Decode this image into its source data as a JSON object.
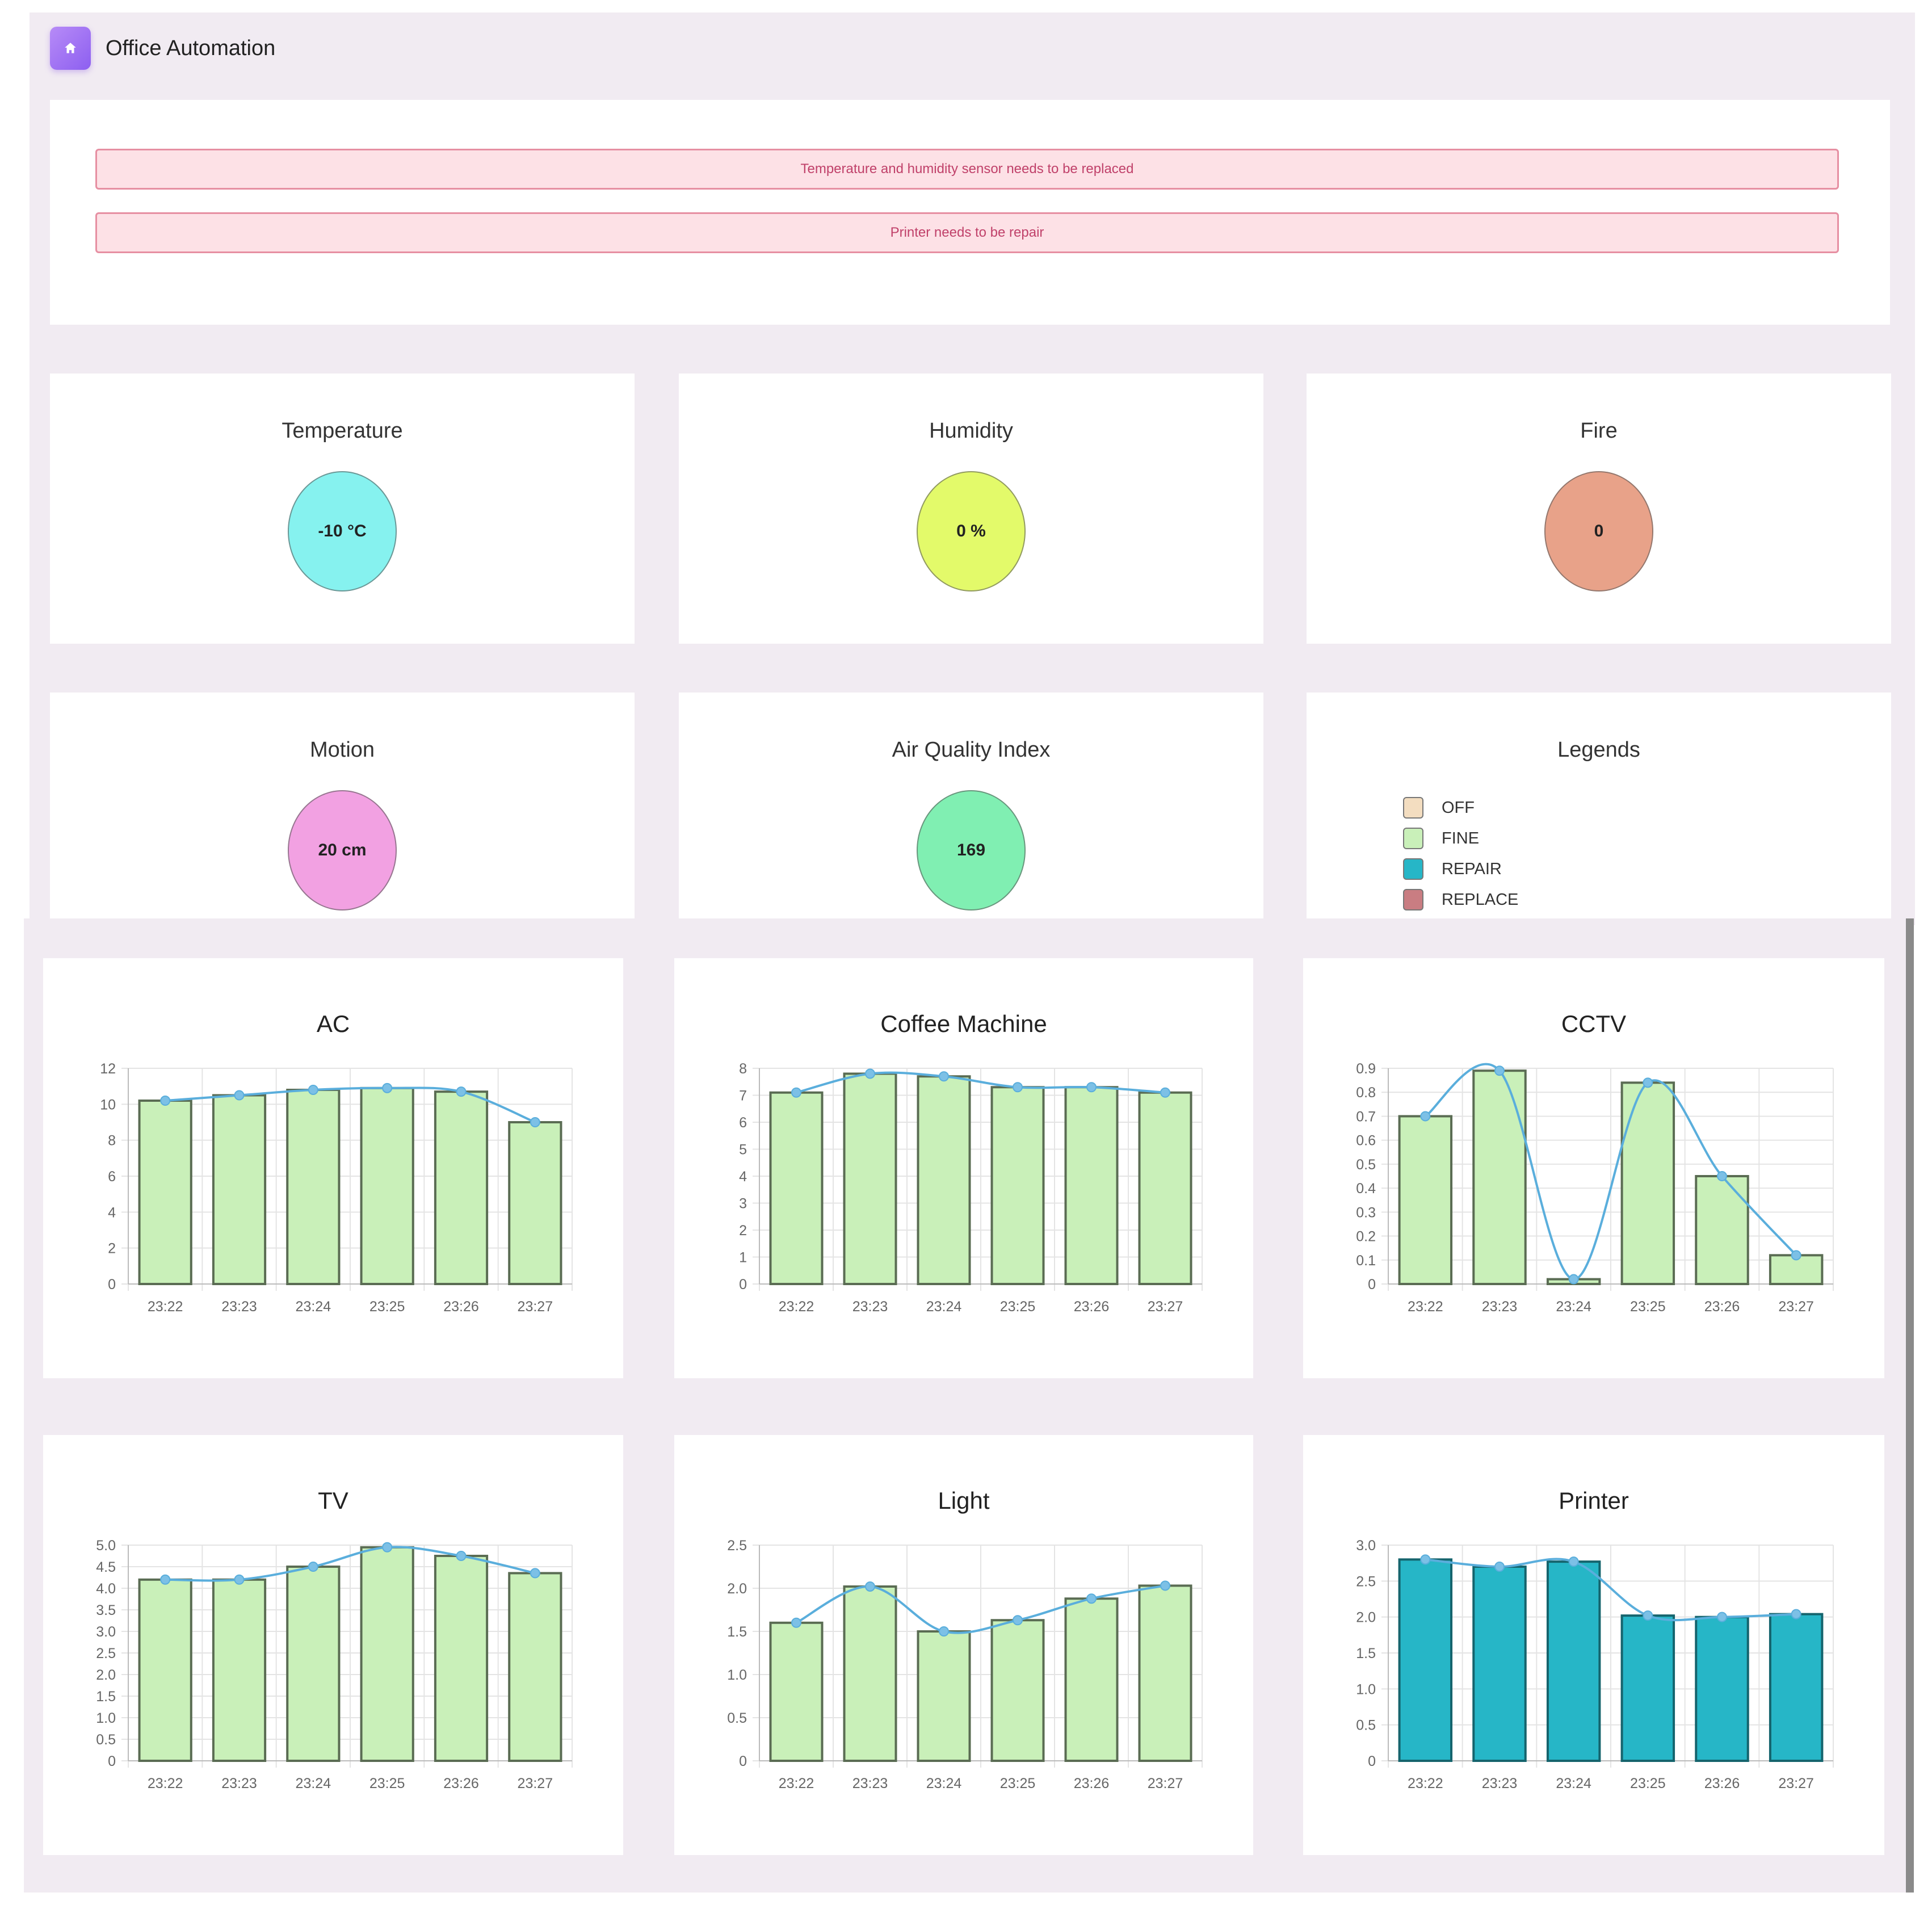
{
  "header": {
    "title": "Office Automation",
    "icon": "home-icon"
  },
  "alerts": [
    "Temperature and humidity sensor needs to be replaced",
    "Printer needs to be repair"
  ],
  "sensors": [
    {
      "title": "Temperature",
      "value": "-10 °C",
      "color": "#86f2ef"
    },
    {
      "title": "Humidity",
      "value": "0 %",
      "color": "#e3fa6a"
    },
    {
      "title": "Fire",
      "value": "0",
      "color": "#e8a289"
    },
    {
      "title": "Motion",
      "value": "20 cm",
      "color": "#f2a1e2"
    },
    {
      "title": "Air Quality Index",
      "value": "169",
      "color": "#80efb2"
    }
  ],
  "legends": {
    "title": "Legends",
    "items": [
      {
        "label": "OFF",
        "color": "#f3ddc0"
      },
      {
        "label": "FINE",
        "color": "#c9f0b9"
      },
      {
        "label": "REPAIR",
        "color": "#26b6c7"
      },
      {
        "label": "REPLACE",
        "color": "#c97d82"
      }
    ]
  },
  "chart_data": [
    {
      "type": "bar",
      "title": "AC",
      "categories": [
        "23:22",
        "23:23",
        "23:24",
        "23:25",
        "23:26",
        "23:27"
      ],
      "values": [
        10.2,
        10.5,
        10.8,
        10.9,
        10.7,
        9.0
      ],
      "ylim": [
        0,
        12
      ],
      "yticks": [
        "0",
        "2",
        "4",
        "6",
        "8",
        "10",
        "12"
      ],
      "color": "#c9f0b9",
      "line_overlay": true
    },
    {
      "type": "bar",
      "title": "Coffee Machine",
      "categories": [
        "23:22",
        "23:23",
        "23:24",
        "23:25",
        "23:26",
        "23:27"
      ],
      "values": [
        7.1,
        7.8,
        7.7,
        7.3,
        7.3,
        7.1
      ],
      "ylim": [
        0,
        8
      ],
      "yticks": [
        "0",
        "1",
        "2",
        "3",
        "4",
        "5",
        "6",
        "7",
        "8"
      ],
      "color": "#c9f0b9",
      "line_overlay": true
    },
    {
      "type": "bar",
      "title": "CCTV",
      "categories": [
        "23:22",
        "23:23",
        "23:24",
        "23:25",
        "23:26",
        "23:27"
      ],
      "values": [
        0.7,
        0.89,
        0.02,
        0.84,
        0.45,
        0.12
      ],
      "ylim": [
        0,
        0.9
      ],
      "yticks": [
        "0",
        "0.1",
        "0.2",
        "0.3",
        "0.4",
        "0.5",
        "0.6",
        "0.7",
        "0.8",
        "0.9"
      ],
      "color": "#c9f0b9",
      "line_overlay": true
    },
    {
      "type": "bar",
      "title": "TV",
      "categories": [
        "23:22",
        "23:23",
        "23:24",
        "23:25",
        "23:26",
        "23:27"
      ],
      "values": [
        4.2,
        4.2,
        4.5,
        4.95,
        4.75,
        4.35
      ],
      "ylim": [
        0,
        5
      ],
      "yticks": [
        "0",
        "0.5",
        "1.0",
        "1.5",
        "2.0",
        "2.5",
        "3.0",
        "3.5",
        "4.0",
        "4.5",
        "5.0"
      ],
      "color": "#c9f0b9",
      "line_overlay": true
    },
    {
      "type": "bar",
      "title": "Light",
      "categories": [
        "23:22",
        "23:23",
        "23:24",
        "23:25",
        "23:26",
        "23:27"
      ],
      "values": [
        1.6,
        2.02,
        1.5,
        1.63,
        1.88,
        2.03
      ],
      "ylim": [
        0,
        2.5
      ],
      "yticks": [
        "0",
        "0.5",
        "1.0",
        "1.5",
        "2.0",
        "2.5"
      ],
      "color": "#c9f0b9",
      "line_overlay": true
    },
    {
      "type": "bar",
      "title": "Printer",
      "categories": [
        "23:22",
        "23:23",
        "23:24",
        "23:25",
        "23:26",
        "23:27"
      ],
      "values": [
        2.8,
        2.7,
        2.77,
        2.02,
        2.0,
        2.04
      ],
      "ylim": [
        0,
        3
      ],
      "yticks": [
        "0",
        "0.5",
        "1.0",
        "1.5",
        "2.0",
        "2.5",
        "3.0"
      ],
      "color": "#26b6c7",
      "line_overlay": true
    }
  ]
}
